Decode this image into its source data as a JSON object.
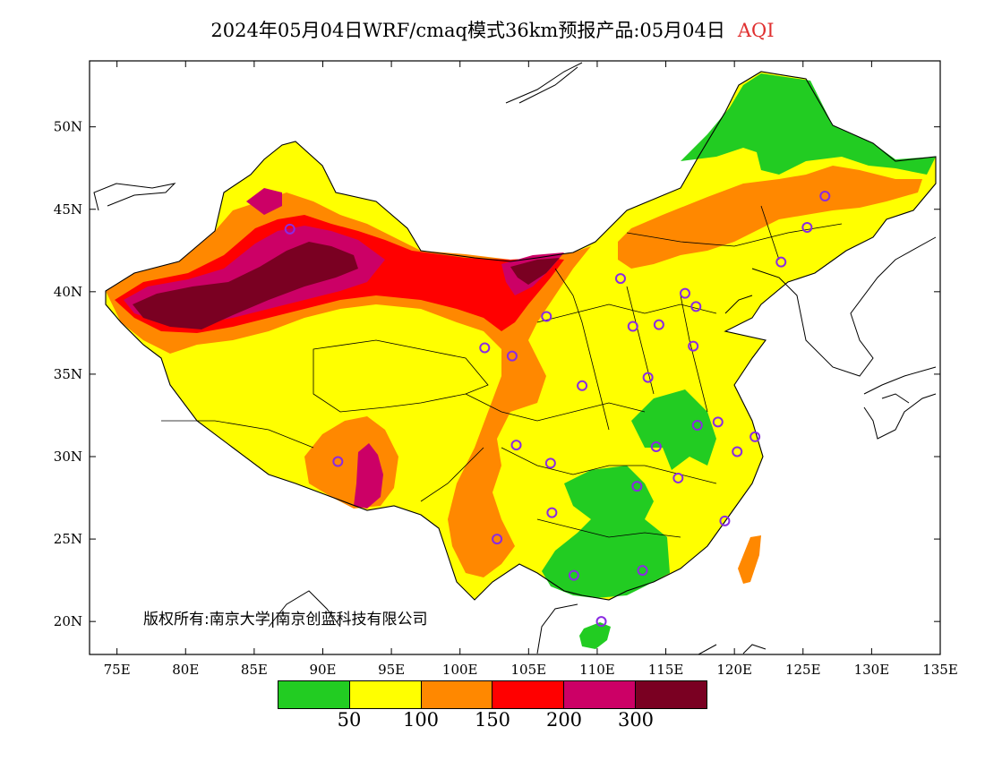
{
  "title": {
    "main": "2024年05月04日WRF/cmaq模式36km预报产品:05月04日",
    "variable": "AQI"
  },
  "axes": {
    "lon_labels": [
      "75E",
      "80E",
      "85E",
      "90E",
      "95E",
      "100E",
      "105E",
      "110E",
      "115E",
      "120E",
      "125E",
      "130E",
      "135E"
    ],
    "lat_labels": [
      "50N",
      "45N",
      "40N",
      "35N",
      "30N",
      "25N",
      "20N"
    ],
    "lon_range": [
      73,
      135
    ],
    "lat_range": [
      18,
      54
    ]
  },
  "copyright": "版权所有:南京大学|南京创蓝科技有限公司",
  "legend": {
    "colors": [
      "#22cc22",
      "#ffff00",
      "#ff8800",
      "#ff0000",
      "#cc0066",
      "#7a0022"
    ],
    "labels": [
      "50",
      "100",
      "150",
      "200",
      "300"
    ]
  },
  "stations": [
    {
      "lon": 87.6,
      "lat": 43.8
    },
    {
      "lon": 91.1,
      "lat": 29.7
    },
    {
      "lon": 101.8,
      "lat": 36.6
    },
    {
      "lon": 103.8,
      "lat": 36.1
    },
    {
      "lon": 106.3,
      "lat": 38.5
    },
    {
      "lon": 111.7,
      "lat": 40.8
    },
    {
      "lon": 116.4,
      "lat": 39.9
    },
    {
      "lon": 117.2,
      "lat": 39.1
    },
    {
      "lon": 114.5,
      "lat": 38.0
    },
    {
      "lon": 112.6,
      "lat": 37.9
    },
    {
      "lon": 117.0,
      "lat": 36.7
    },
    {
      "lon": 113.7,
      "lat": 34.8
    },
    {
      "lon": 108.9,
      "lat": 34.3
    },
    {
      "lon": 104.1,
      "lat": 30.7
    },
    {
      "lon": 106.6,
      "lat": 29.6
    },
    {
      "lon": 114.3,
      "lat": 30.6
    },
    {
      "lon": 117.3,
      "lat": 31.9
    },
    {
      "lon": 118.8,
      "lat": 32.1
    },
    {
      "lon": 120.2,
      "lat": 30.3
    },
    {
      "lon": 121.5,
      "lat": 31.2
    },
    {
      "lon": 112.9,
      "lat": 28.2
    },
    {
      "lon": 115.9,
      "lat": 28.7
    },
    {
      "lon": 119.3,
      "lat": 26.1
    },
    {
      "lon": 106.7,
      "lat": 26.6
    },
    {
      "lon": 102.7,
      "lat": 25.0
    },
    {
      "lon": 108.3,
      "lat": 22.8
    },
    {
      "lon": 113.3,
      "lat": 23.1
    },
    {
      "lon": 110.3,
      "lat": 20.0
    },
    {
      "lon": 123.4,
      "lat": 41.8
    },
    {
      "lon": 125.3,
      "lat": 43.9
    },
    {
      "lon": 126.6,
      "lat": 45.8
    }
  ]
}
